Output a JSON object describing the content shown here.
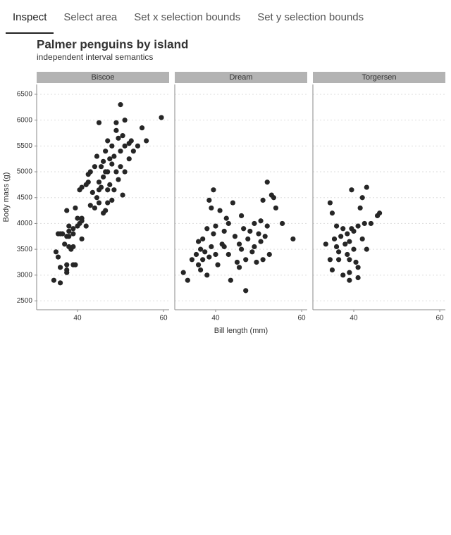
{
  "tabs": [
    "Inspect",
    "Select area",
    "Set x selection bounds",
    "Set y selection bounds"
  ],
  "active_tab": 0,
  "title": "Palmer penguins by island",
  "subtitle": "independent interval semantics",
  "xlabel": "Bill length (mm)",
  "ylabel": "Body mass (g)",
  "chart_data": [
    {
      "type": "scatter",
      "title": "Biscoe",
      "color": "#262626",
      "grid": true,
      "xlim": [
        30.5,
        61.3
      ],
      "ylim": [
        2330,
        6690
      ],
      "xticks": [
        40,
        60
      ],
      "yticks": [
        2500,
        3000,
        3500,
        4000,
        4500,
        5000,
        5500,
        6000,
        6500
      ],
      "x": [
        34.5,
        36,
        37.5,
        37.5,
        39,
        39.5,
        35,
        36,
        37,
        38,
        38.5,
        39,
        35.5,
        35.5,
        36,
        37.5,
        38,
        38,
        39,
        40,
        41,
        41,
        40.5,
        39.5,
        37.5,
        38,
        36.5,
        37.5,
        39,
        40,
        41,
        42,
        40.5,
        41,
        42,
        42.5,
        42.5,
        43,
        43.5,
        44,
        44.5,
        45,
        45,
        45,
        45.5,
        45.5,
        46,
        46,
        46,
        46.5,
        47,
        46.5,
        47,
        47,
        47.5,
        47.5,
        48,
        48,
        48.5,
        48.5,
        49,
        49,
        49,
        49.5,
        49.5,
        50,
        50,
        50,
        50.5,
        50.5,
        51,
        51,
        51,
        52,
        52,
        52.5,
        53,
        54,
        55,
        56,
        59.5,
        45,
        44,
        43,
        47,
        46.5,
        44.5,
        48
      ],
      "y": [
        2900,
        2850,
        3100,
        3200,
        3200,
        3200,
        3450,
        3150,
        3600,
        3550,
        3500,
        3550,
        3350,
        3800,
        3800,
        3750,
        3850,
        3950,
        3900,
        3950,
        3700,
        4050,
        4000,
        4300,
        4250,
        3750,
        3800,
        3050,
        3800,
        4100,
        4100,
        3950,
        4650,
        4700,
        4750,
        4800,
        4950,
        5000,
        4600,
        4300,
        4500,
        4400,
        4650,
        4800,
        5100,
        4700,
        4900,
        5200,
        4200,
        4250,
        4400,
        5400,
        5000,
        5600,
        4750,
        5250,
        5500,
        4450,
        5300,
        4650,
        5000,
        5800,
        5950,
        5650,
        4850,
        5400,
        6300,
        5100,
        5700,
        4550,
        5500,
        6000,
        5000,
        5550,
        5250,
        5600,
        5400,
        5500,
        5850,
        5600,
        6050,
        5950,
        5100,
        4350,
        4650,
        5000,
        5300,
        5150
      ]
    },
    {
      "type": "scatter",
      "title": "Dream",
      "color": "#262626",
      "grid": true,
      "xlim": [
        30.5,
        61.3
      ],
      "ylim": [
        2330,
        6690
      ],
      "xticks": [
        40,
        60
      ],
      "yticks": [
        2500,
        3000,
        3500,
        4000,
        4500,
        5000,
        5500,
        6000,
        6500
      ],
      "x": [
        32.5,
        33.5,
        35.5,
        36,
        36.5,
        36.5,
        37,
        37,
        37.5,
        38,
        38,
        38.5,
        38.5,
        39,
        39,
        39.5,
        39.5,
        40,
        40,
        40.5,
        41,
        41.5,
        42,
        42.5,
        43,
        43,
        43.5,
        44,
        44.5,
        45,
        45.5,
        46,
        46,
        46.5,
        47,
        47,
        47.5,
        48,
        48.5,
        49,
        49,
        49.5,
        50,
        50.5,
        50.5,
        51,
        51,
        51.5,
        52,
        52,
        52.5,
        53,
        53.5,
        54,
        55.5,
        58,
        45.5,
        42,
        36,
        34.5
      ],
      "y": [
        3050,
        2900,
        3400,
        3200,
        3100,
        3500,
        3300,
        3700,
        3450,
        3000,
        3900,
        3350,
        4450,
        3550,
        4300,
        3800,
        4650,
        3400,
        3950,
        3200,
        4250,
        3600,
        3550,
        4100,
        3400,
        4000,
        2900,
        4400,
        3750,
        3250,
        3600,
        3500,
        4150,
        3900,
        2700,
        3300,
        3700,
        3850,
        3450,
        3550,
        4000,
        3250,
        3800,
        3650,
        4050,
        3300,
        4450,
        3750,
        3950,
        4800,
        3400,
        4550,
        4500,
        4300,
        4000,
        3700,
        3150,
        3850,
        3650,
        3300
      ]
    },
    {
      "type": "scatter",
      "title": "Torgersen",
      "color": "#262626",
      "grid": true,
      "xlim": [
        30.5,
        61.3
      ],
      "ylim": [
        2330,
        6690
      ],
      "xticks": [
        40,
        60
      ],
      "yticks": [
        2500,
        3000,
        3500,
        4000,
        4500,
        5000,
        5500,
        6000,
        6500
      ],
      "x": [
        33.5,
        34.5,
        35,
        34.5,
        35,
        35.5,
        36,
        36,
        36.5,
        36.5,
        37,
        37.5,
        37.5,
        38,
        38.5,
        38.5,
        39,
        39,
        39,
        39,
        39.5,
        39.5,
        40,
        40,
        40.5,
        41,
        41,
        41.5,
        42,
        42,
        42.5,
        43,
        43,
        44,
        45.5,
        46,
        41
      ],
      "y": [
        3600,
        4400,
        4200,
        3300,
        3100,
        3700,
        3950,
        3550,
        3300,
        3450,
        3750,
        3900,
        3000,
        3600,
        3800,
        3400,
        3650,
        3300,
        2900,
        3050,
        4650,
        3900,
        3500,
        3850,
        3250,
        2950,
        3950,
        4300,
        4500,
        3700,
        4000,
        4700,
        3500,
        4000,
        4150,
        4200,
        3150
      ]
    }
  ]
}
